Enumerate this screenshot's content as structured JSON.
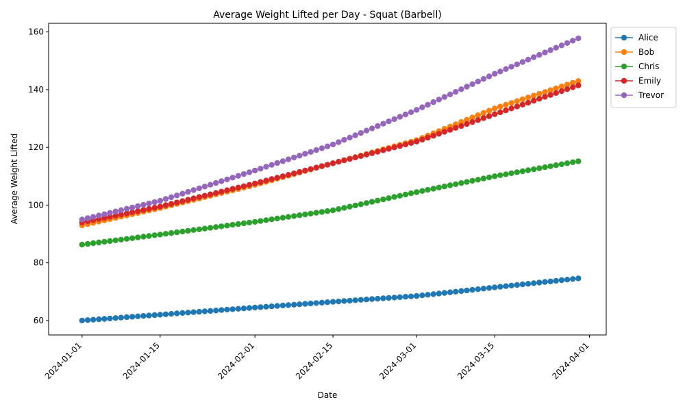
{
  "chart_data": {
    "type": "line",
    "title": "Average Weight Lifted per Day - Squat (Barbell)",
    "xlabel": "Date",
    "ylabel": "Average Weight Lifted",
    "x_start": "2024-01-01",
    "x_end": "2024-03-30",
    "xlim": [
      "2023-12-26",
      "2024-04-04"
    ],
    "ylim": [
      55,
      163
    ],
    "x_ticks": [
      "2024-01-01",
      "2024-01-15",
      "2024-02-01",
      "2024-02-15",
      "2024-03-01",
      "2024-03-15",
      "2024-04-01"
    ],
    "y_ticks": [
      60,
      80,
      100,
      120,
      140,
      160
    ],
    "grid": false,
    "legend_position": "outside-top-right",
    "series": [
      {
        "name": "Alice",
        "color": "#1f77b4",
        "anchors": [
          [
            "2024-01-01",
            60
          ],
          [
            "2024-02-01",
            64.5
          ],
          [
            "2024-02-15",
            66.5
          ],
          [
            "2024-03-01",
            68.5
          ],
          [
            "2024-03-15",
            71.5
          ],
          [
            "2024-03-30",
            74.6
          ]
        ]
      },
      {
        "name": "Bob",
        "color": "#ff7f0e",
        "anchors": [
          [
            "2024-01-01",
            93
          ],
          [
            "2024-01-15",
            99
          ],
          [
            "2024-02-01",
            107
          ],
          [
            "2024-02-15",
            114.5
          ],
          [
            "2024-03-01",
            122.5
          ],
          [
            "2024-03-15",
            133.5
          ],
          [
            "2024-03-30",
            143
          ]
        ]
      },
      {
        "name": "Chris",
        "color": "#2ca02c",
        "anchors": [
          [
            "2024-01-01",
            86.3
          ],
          [
            "2024-01-15",
            89.8
          ],
          [
            "2024-02-01",
            94.2
          ],
          [
            "2024-02-15",
            98.2
          ],
          [
            "2024-03-01",
            104.5
          ],
          [
            "2024-03-15",
            110
          ],
          [
            "2024-03-30",
            115.2
          ]
        ]
      },
      {
        "name": "Emily",
        "color": "#d62728",
        "anchors": [
          [
            "2024-01-01",
            94
          ],
          [
            "2024-01-15",
            99.5
          ],
          [
            "2024-02-01",
            107.5
          ],
          [
            "2024-02-15",
            114.5
          ],
          [
            "2024-03-01",
            122
          ],
          [
            "2024-03-15",
            131.5
          ],
          [
            "2024-03-30",
            141.5
          ]
        ]
      },
      {
        "name": "Trevor",
        "color": "#9467bd",
        "anchors": [
          [
            "2024-01-01",
            95
          ],
          [
            "2024-01-15",
            101.5
          ],
          [
            "2024-02-01",
            112
          ],
          [
            "2024-02-15",
            121
          ],
          [
            "2024-03-01",
            133
          ],
          [
            "2024-03-15",
            145.5
          ],
          [
            "2024-03-30",
            157.8
          ]
        ]
      }
    ]
  }
}
